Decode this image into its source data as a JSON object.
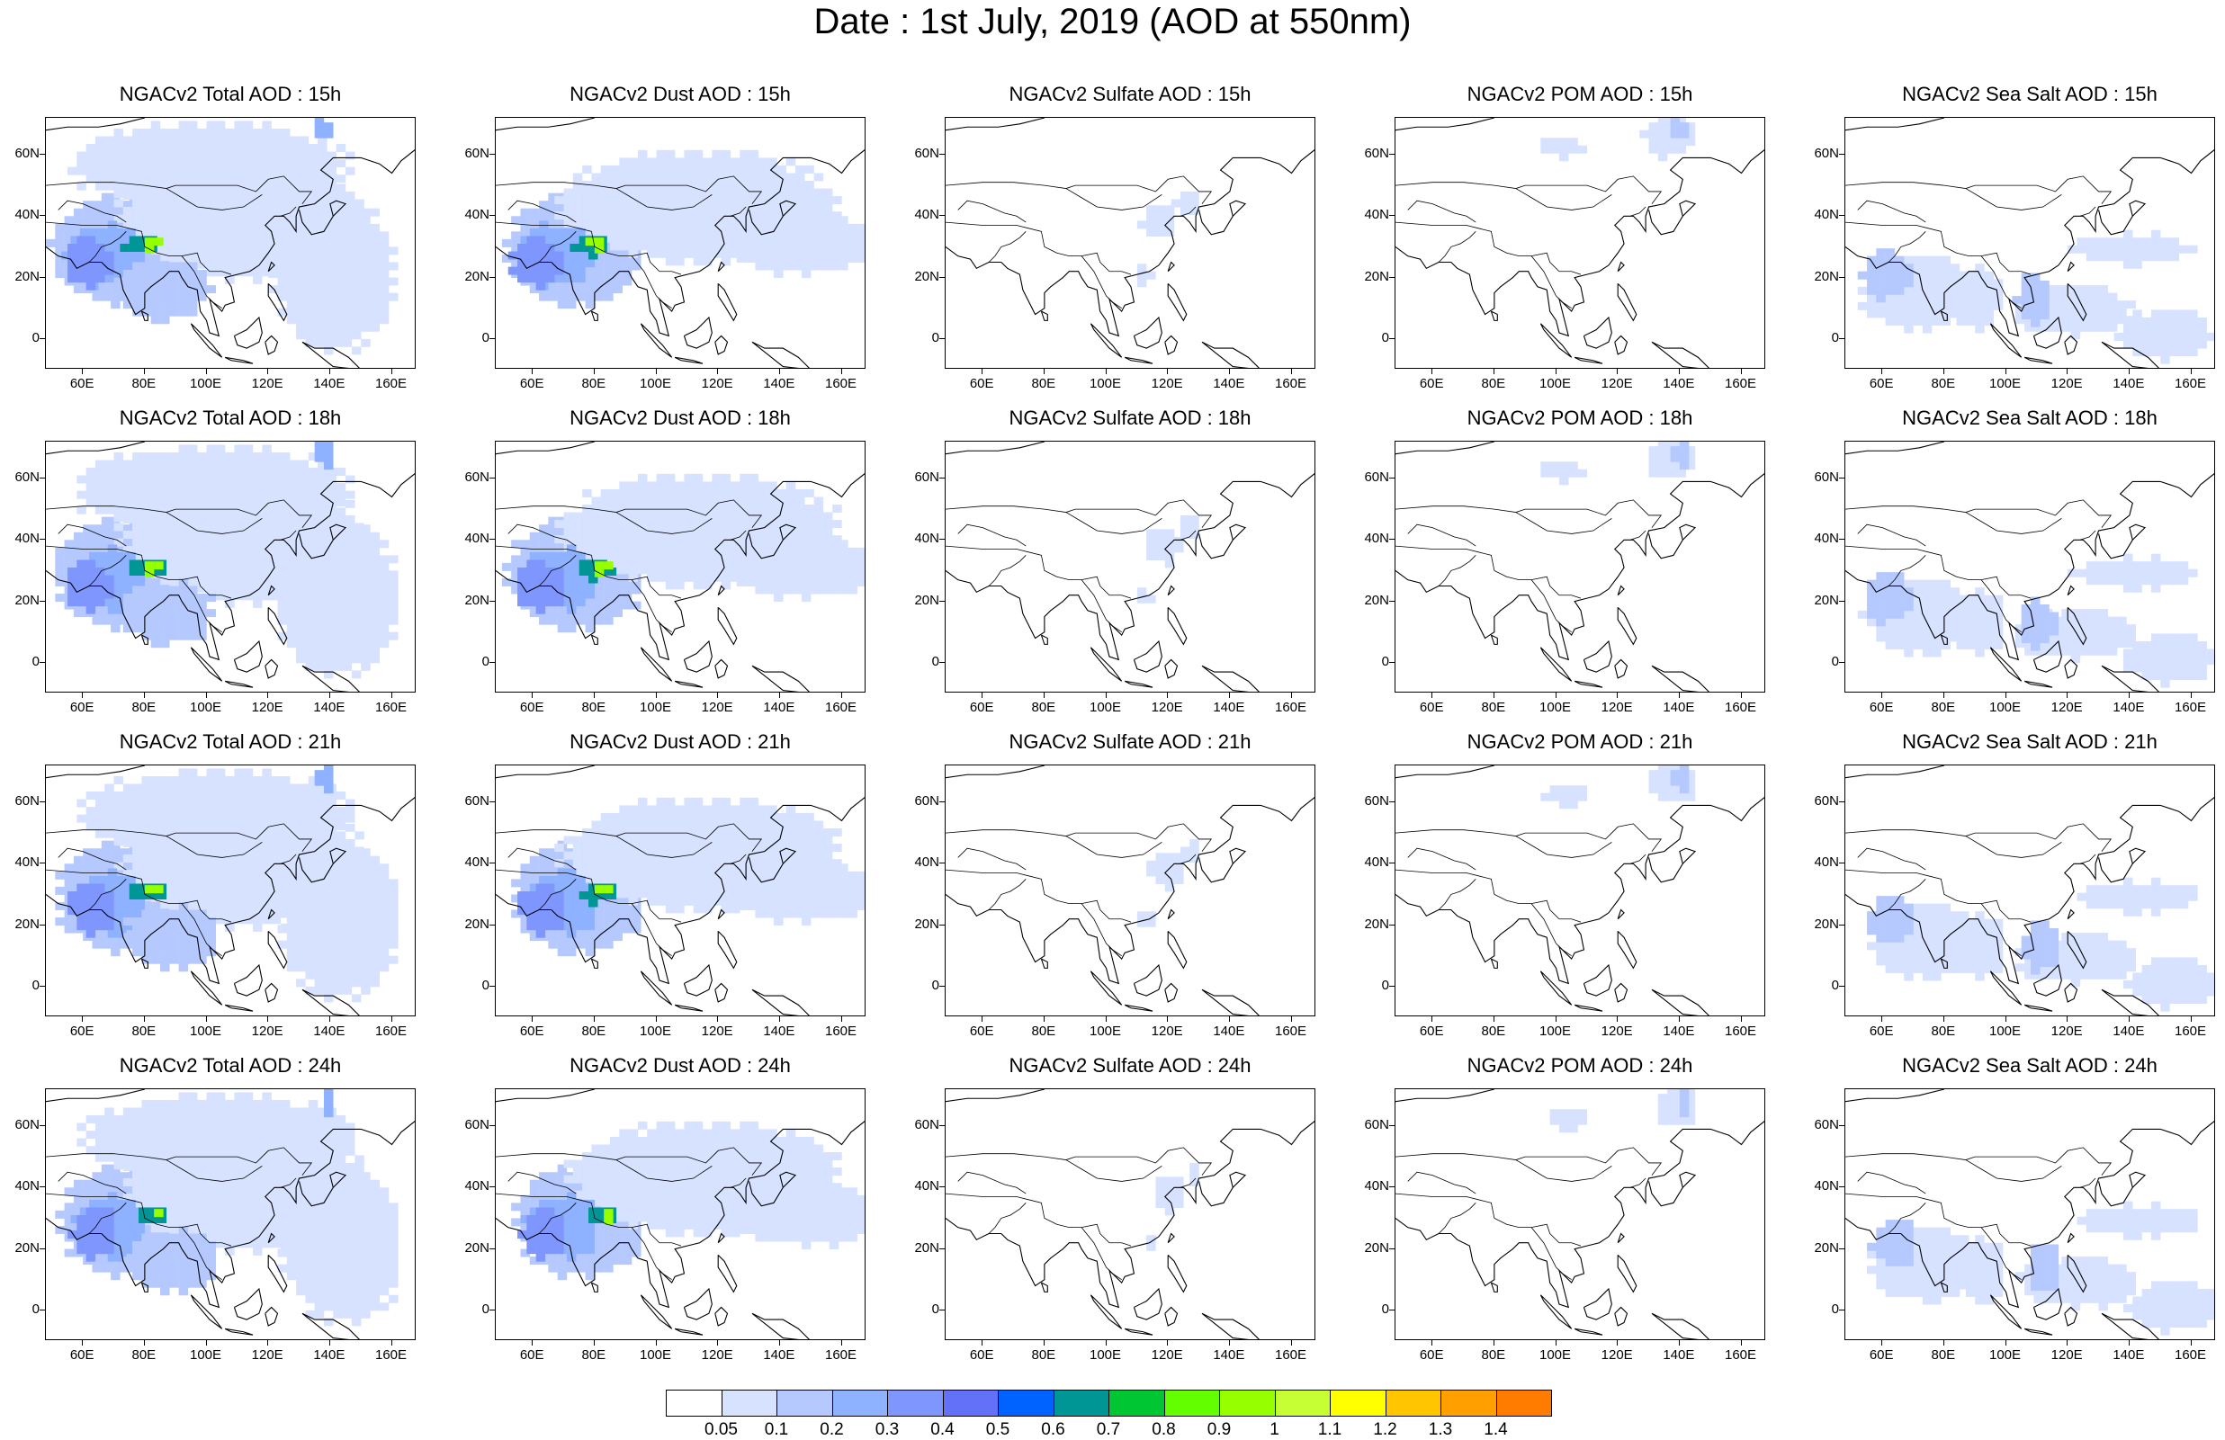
{
  "title": "Date : 1st July, 2019 (AOD at 550nm)",
  "x_ticks": [
    "60E",
    "80E",
    "100E",
    "120E",
    "140E",
    "160E"
  ],
  "y_ticks": [
    "60N",
    "40N",
    "20N",
    "0"
  ],
  "panels": [
    [
      {
        "title": "NGACv2 Total AOD : 15h",
        "species": "total",
        "hour": 15
      },
      {
        "title": "NGACv2 Dust AOD : 15h",
        "species": "dust",
        "hour": 15
      },
      {
        "title": "NGACv2 Sulfate AOD : 15h",
        "species": "sulfate",
        "hour": 15
      },
      {
        "title": "NGACv2 POM AOD : 15h",
        "species": "pom",
        "hour": 15
      },
      {
        "title": "NGACv2 Sea Salt AOD : 15h",
        "species": "seasalt",
        "hour": 15
      }
    ],
    [
      {
        "title": "NGACv2 Total AOD : 18h",
        "species": "total",
        "hour": 18
      },
      {
        "title": "NGACv2 Dust AOD : 18h",
        "species": "dust",
        "hour": 18
      },
      {
        "title": "NGACv2 Sulfate AOD : 18h",
        "species": "sulfate",
        "hour": 18
      },
      {
        "title": "NGACv2 POM AOD : 18h",
        "species": "pom",
        "hour": 18
      },
      {
        "title": "NGACv2 Sea Salt AOD : 18h",
        "species": "seasalt",
        "hour": 18
      }
    ],
    [
      {
        "title": "NGACv2 Total AOD : 21h",
        "species": "total",
        "hour": 21
      },
      {
        "title": "NGACv2 Dust AOD : 21h",
        "species": "dust",
        "hour": 21
      },
      {
        "title": "NGACv2 Sulfate AOD : 21h",
        "species": "sulfate",
        "hour": 21
      },
      {
        "title": "NGACv2 POM AOD : 21h",
        "species": "pom",
        "hour": 21
      },
      {
        "title": "NGACv2 Sea Salt AOD : 21h",
        "species": "seasalt",
        "hour": 21
      }
    ],
    [
      {
        "title": "NGACv2 Total AOD : 24h",
        "species": "total",
        "hour": 24
      },
      {
        "title": "NGACv2 Dust AOD : 24h",
        "species": "dust",
        "hour": 24
      },
      {
        "title": "NGACv2 Sulfate AOD : 24h",
        "species": "sulfate",
        "hour": 24
      },
      {
        "title": "NGACv2 POM AOD : 24h",
        "species": "pom",
        "hour": 24
      },
      {
        "title": "NGACv2 Sea Salt  AOD : 24h",
        "species": "seasalt",
        "hour": 24
      }
    ]
  ],
  "colorbar": {
    "labels": [
      "0.05",
      "0.1",
      "0.2",
      "0.3",
      "0.4",
      "0.5",
      "0.6",
      "0.7",
      "0.8",
      "0.9",
      "1",
      "1.1",
      "1.2",
      "1.3",
      "1.4"
    ],
    "colors": [
      "#ffffff",
      "#d6e2ff",
      "#b5c9ff",
      "#8eb2ff",
      "#7f96ff",
      "#6370f8",
      "#0063ff",
      "#009696",
      "#00c633",
      "#63ff00",
      "#96ff00",
      "#c6ff33",
      "#ffff00",
      "#ffc600",
      "#ffa000",
      "#ff7c00",
      "#ff1900"
    ]
  }
}
